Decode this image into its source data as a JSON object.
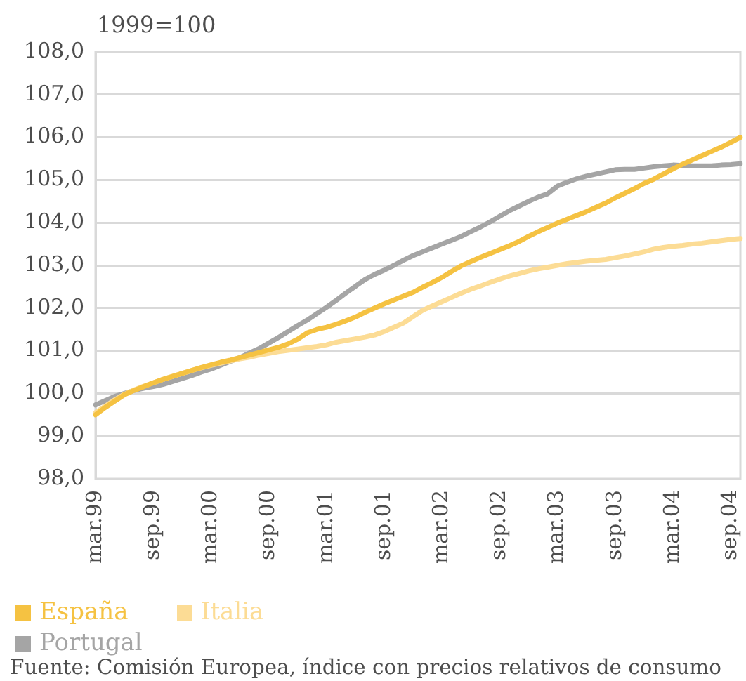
{
  "chart_data": {
    "type": "line",
    "subtitle": "1999=100",
    "categories": [
      "mar.99",
      null,
      null,
      null,
      null,
      null,
      "sep.99",
      null,
      null,
      null,
      null,
      null,
      "mar.00",
      null,
      null,
      null,
      null,
      null,
      "sep.00",
      null,
      null,
      null,
      null,
      null,
      "mar.01",
      null,
      null,
      null,
      null,
      null,
      "sep.01",
      null,
      null,
      null,
      null,
      null,
      "mar.02",
      null,
      null,
      null,
      null,
      null,
      "sep.02",
      null,
      null,
      null,
      null,
      null,
      "mar.03",
      null,
      null,
      null,
      null,
      null,
      "sep.03",
      null,
      null,
      null,
      null,
      null,
      "mar.04",
      null,
      null,
      null,
      null,
      null,
      "sep.04",
      null
    ],
    "series": [
      {
        "name": "España",
        "color": "#f5c242",
        "values": [
          99.5,
          99.67,
          99.82,
          99.97,
          100.07,
          100.16,
          100.25,
          100.33,
          100.4,
          100.47,
          100.54,
          100.61,
          100.67,
          100.73,
          100.78,
          100.84,
          100.9,
          100.96,
          101.02,
          101.08,
          101.16,
          101.27,
          101.42,
          101.5,
          101.55,
          101.62,
          101.7,
          101.79,
          101.9,
          102.0,
          102.1,
          102.19,
          102.28,
          102.37,
          102.49,
          102.6,
          102.72,
          102.86,
          102.99,
          103.09,
          103.19,
          103.28,
          103.37,
          103.46,
          103.56,
          103.68,
          103.79,
          103.89,
          103.99,
          104.08,
          104.17,
          104.26,
          104.36,
          104.46,
          104.58,
          104.69,
          104.8,
          104.92,
          105.02,
          105.14,
          105.26,
          105.37,
          105.47,
          105.57,
          105.67,
          105.77,
          105.88,
          106.0
        ]
      },
      {
        "name": "Italia",
        "color": "#fcdc95",
        "values": [
          99.55,
          99.7,
          99.85,
          99.98,
          100.08,
          100.17,
          100.25,
          100.33,
          100.4,
          100.47,
          100.54,
          100.6,
          100.66,
          100.71,
          100.76,
          100.81,
          100.85,
          100.9,
          100.94,
          100.98,
          101.01,
          101.04,
          101.07,
          101.1,
          101.14,
          101.2,
          101.24,
          101.28,
          101.32,
          101.37,
          101.45,
          101.55,
          101.65,
          101.8,
          101.95,
          102.05,
          102.15,
          102.25,
          102.35,
          102.44,
          102.52,
          102.6,
          102.68,
          102.75,
          102.81,
          102.87,
          102.92,
          102.96,
          103.0,
          103.04,
          103.07,
          103.1,
          103.12,
          103.14,
          103.18,
          103.22,
          103.27,
          103.32,
          103.38,
          103.42,
          103.45,
          103.47,
          103.5,
          103.52,
          103.55,
          103.58,
          103.61,
          103.63
        ]
      },
      {
        "name": "Portugal",
        "color": "#a5a5a5",
        "values": [
          99.73,
          99.83,
          99.93,
          100.0,
          100.07,
          100.12,
          100.16,
          100.21,
          100.28,
          100.35,
          100.42,
          100.5,
          100.57,
          100.66,
          100.75,
          100.84,
          100.95,
          101.05,
          101.18,
          101.31,
          101.45,
          101.59,
          101.72,
          101.87,
          102.02,
          102.18,
          102.35,
          102.51,
          102.67,
          102.79,
          102.89,
          103.0,
          103.12,
          103.23,
          103.32,
          103.41,
          103.5,
          103.59,
          103.68,
          103.79,
          103.9,
          104.02,
          104.15,
          104.28,
          104.39,
          104.5,
          104.6,
          104.68,
          104.86,
          104.95,
          105.03,
          105.09,
          105.14,
          105.19,
          105.24,
          105.25,
          105.25,
          105.28,
          105.31,
          105.33,
          105.35,
          105.34,
          105.33,
          105.33,
          105.33,
          105.35,
          105.36,
          105.38
        ]
      }
    ],
    "ylim": [
      98,
      108
    ],
    "yticks": [
      {
        "value": 98,
        "label": "98,0"
      },
      {
        "value": 99,
        "label": "99,0"
      },
      {
        "value": 100,
        "label": "100,0"
      },
      {
        "value": 101,
        "label": "101,0"
      },
      {
        "value": 102,
        "label": "102,0"
      },
      {
        "value": 103,
        "label": "103,0"
      },
      {
        "value": 104,
        "label": "104,0"
      },
      {
        "value": 105,
        "label": "105,0"
      },
      {
        "value": 106,
        "label": "106,0"
      },
      {
        "value": 107,
        "label": "107,0"
      },
      {
        "value": 108,
        "label": "108,0"
      }
    ],
    "grid": "y",
    "legend": "bottom",
    "annotations": [
      "Fuente: Comisión Europea, índice con precios relativos de consumo"
    ]
  }
}
